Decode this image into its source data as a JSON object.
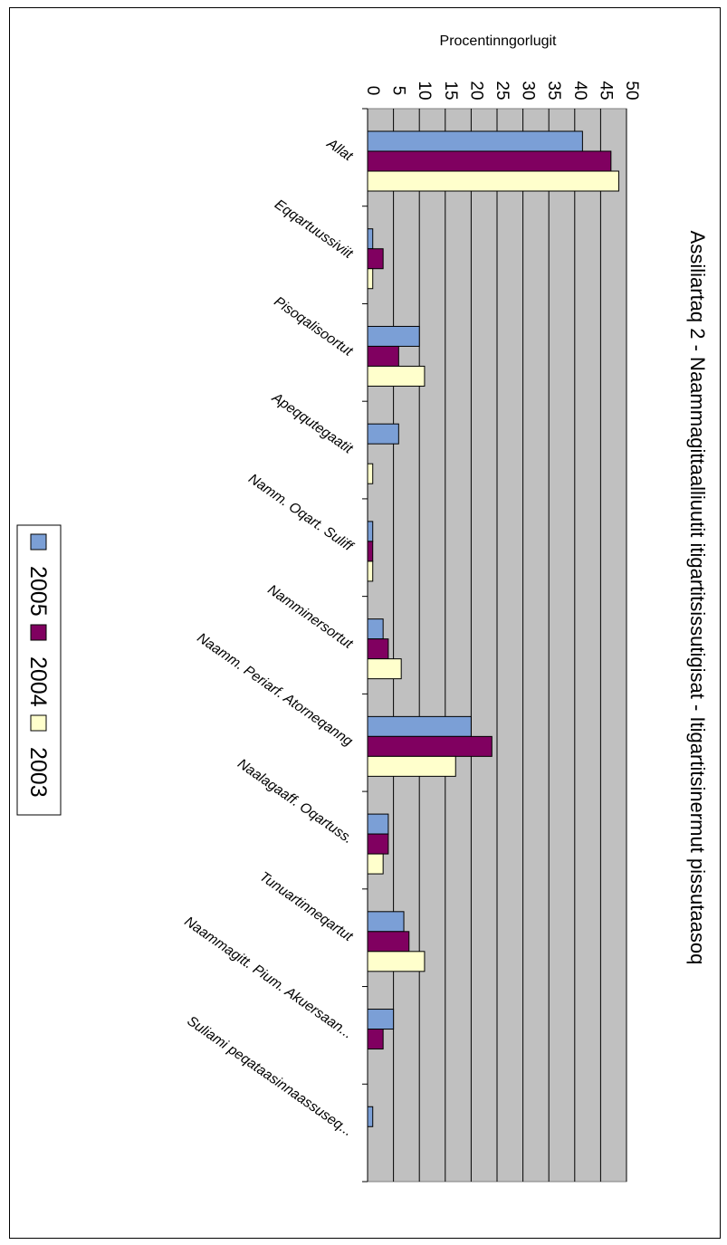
{
  "chart_data": {
    "type": "bar",
    "orientation": "horizontal",
    "title": "Assiliartaq 2 - Naammagittaalliuutit itigartitsissutigisat - Itigartitsinermut pissutaasoq",
    "ylabel": "Procentinngorlugit",
    "xlabel": "",
    "ylim": [
      0,
      50
    ],
    "ticks": [
      0,
      5,
      10,
      15,
      20,
      25,
      30,
      35,
      40,
      45,
      50
    ],
    "grid": true,
    "legend_position": "left",
    "categories": [
      "Allat",
      "Eqqartuussiviit",
      "Pisoqalisoortut",
      "Apeqqutegaatit",
      "Namm. Oqart. Suliff",
      "Namminersortut",
      "Naamm. Periarf. Atorneqanng",
      "Naalagaaff. Oqartuss.",
      "Tunuartinneqartut",
      "Naammagitt. Pium. Akuersaan...",
      "Suliami peqataasinnaassuseq..."
    ],
    "series": [
      {
        "name": "2005",
        "color": "#7b9fd6",
        "values": [
          41.5,
          1,
          10,
          6,
          1,
          3,
          20,
          4,
          7,
          5,
          1
        ]
      },
      {
        "name": "2004",
        "color": "#800060",
        "values": [
          47,
          3,
          6,
          0,
          1,
          4,
          24,
          4,
          8,
          3,
          0
        ]
      },
      {
        "name": "2003",
        "color": "#ffffcc",
        "values": [
          48.5,
          1,
          11,
          1,
          1,
          6.5,
          17,
          3,
          11,
          0,
          0
        ]
      }
    ],
    "plot_background": "#c0c0c0"
  }
}
